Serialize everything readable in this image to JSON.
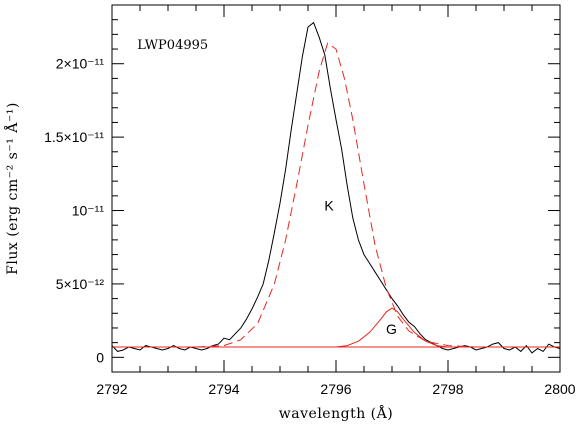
{
  "chart_data": {
    "type": "line",
    "title": "",
    "xlabel": "wavelength (Å)",
    "ylabel": "Flux (erg cm⁻² s⁻¹ Å⁻¹)",
    "xlim": [
      2792,
      2800
    ],
    "ylim": [
      -1e-12,
      2.4e-11
    ],
    "x_ticks": [
      {
        "value": 2792,
        "label": "2792"
      },
      {
        "value": 2794,
        "label": "2794"
      },
      {
        "value": 2796,
        "label": "2796"
      },
      {
        "value": 2798,
        "label": "2798"
      },
      {
        "value": 2800,
        "label": "2800"
      }
    ],
    "y_ticks": [
      {
        "value": 0,
        "label": "0"
      },
      {
        "value": 5e-12,
        "label": "5×10⁻¹²"
      },
      {
        "value": 1e-11,
        "label": "10⁻¹¹"
      },
      {
        "value": 1.5e-11,
        "label": "1.5×10⁻¹¹"
      },
      {
        "value": 2e-11,
        "label": "2×10⁻¹¹"
      }
    ],
    "annotations": [
      {
        "text": "LWP04995",
        "x": 2792.45,
        "y": 2.1e-11
      },
      {
        "text": "K",
        "x": 2795.9,
        "y": 1e-11
      },
      {
        "text": "G",
        "x": 2797.0,
        "y": 1.6e-12
      }
    ],
    "series": [
      {
        "style": "solid",
        "color": "#000000",
        "x": [
          2792.0,
          2792.1,
          2792.2,
          2792.3,
          2792.4,
          2792.5,
          2792.6,
          2792.7,
          2792.8,
          2792.9,
          2793.0,
          2793.1,
          2793.2,
          2793.3,
          2793.4,
          2793.5,
          2793.6,
          2793.7,
          2793.8,
          2793.9,
          2794.0,
          2794.1,
          2794.2,
          2794.3,
          2794.4,
          2794.5,
          2794.6,
          2794.7,
          2794.8,
          2794.9,
          2795.0,
          2795.1,
          2795.2,
          2795.3,
          2795.4,
          2795.5,
          2795.6,
          2795.7,
          2795.8,
          2795.9,
          2796.0,
          2796.1,
          2796.2,
          2796.3,
          2796.4,
          2796.5,
          2796.6,
          2796.7,
          2796.8,
          2796.9,
          2797.0,
          2797.1,
          2797.2,
          2797.3,
          2797.4,
          2797.5,
          2797.6,
          2797.7,
          2797.8,
          2797.9,
          2798.0,
          2798.1,
          2798.2,
          2798.3,
          2798.4,
          2798.5,
          2798.6,
          2798.7,
          2798.8,
          2798.9,
          2799.0,
          2799.1,
          2799.2,
          2799.3,
          2799.4,
          2799.5,
          2799.6,
          2799.7,
          2799.8,
          2799.9,
          2800.0
        ],
        "values": [
          8e-13,
          4e-13,
          5e-13,
          7e-13,
          6e-13,
          5e-13,
          8e-13,
          7e-13,
          6e-13,
          5e-13,
          6e-13,
          8e-13,
          6e-13,
          5e-13,
          7e-13,
          6e-13,
          5e-13,
          6e-13,
          8e-13,
          9e-13,
          1.3e-12,
          1.2e-12,
          1.6e-12,
          2e-12,
          2.6e-12,
          3.3e-12,
          4.1e-12,
          5e-12,
          6.6e-12,
          8.5e-12,
          1.05e-11,
          1.28e-11,
          1.55e-11,
          1.8e-11,
          2.05e-11,
          2.25e-11,
          2.28e-11,
          2.18e-11,
          2.06e-11,
          1.83e-11,
          1.62e-11,
          1.42e-11,
          1.17e-11,
          9.5e-12,
          8e-12,
          7e-12,
          6.4e-12,
          5.8e-12,
          5.2e-12,
          4.6e-12,
          4e-12,
          3.5e-12,
          2.9e-12,
          2.4e-12,
          2.1e-12,
          1.6e-12,
          1.2e-12,
          1e-12,
          8e-13,
          6e-13,
          5e-13,
          6e-13,
          7e-13,
          8e-13,
          7e-13,
          5e-13,
          6e-13,
          7e-13,
          9e-13,
          1e-12,
          6e-13,
          5e-13,
          7e-13,
          4e-13,
          8e-13,
          3e-13,
          6e-13,
          4e-13,
          9e-13,
          7e-13,
          6e-13
        ]
      },
      {
        "style": "dashed",
        "color": "#e8271f",
        "x": [
          2792.0,
          2792.5,
          2793.0,
          2793.5,
          2794.0,
          2794.3,
          2794.6,
          2794.9,
          2795.1,
          2795.3,
          2795.5,
          2795.7,
          2795.85,
          2796.0,
          2796.15,
          2796.3,
          2796.5,
          2796.7,
          2796.9,
          2797.1,
          2797.3,
          2797.6,
          2798.0,
          2798.5,
          2799.0,
          2799.5,
          2800.0
        ],
        "values": [
          7e-13,
          7e-13,
          7e-13,
          7e-13,
          8e-13,
          1.2e-12,
          2.3e-12,
          5e-12,
          8e-12,
          1.18e-11,
          1.58e-11,
          1.95e-11,
          2.14e-11,
          2.1e-11,
          1.9e-11,
          1.62e-11,
          1.18e-11,
          7.6e-12,
          4.7e-12,
          2.8e-12,
          1.8e-12,
          1.1e-12,
          8e-13,
          7e-13,
          7e-13,
          7e-13,
          7e-13
        ]
      },
      {
        "style": "solid",
        "color": "#e8271f",
        "x": [
          2792.0,
          2796.0,
          2796.2,
          2796.4,
          2796.6,
          2796.8,
          2796.9,
          2797.0,
          2797.1,
          2797.2,
          2797.4,
          2797.6,
          2797.8,
          2798.0,
          2800.0
        ],
        "values": [
          7e-13,
          7e-13,
          8e-13,
          1.1e-12,
          1.7e-12,
          2.6e-12,
          3.1e-12,
          3.35e-12,
          3.1e-12,
          2.6e-12,
          1.7e-12,
          1.1e-12,
          8e-13,
          7e-13,
          7e-13
        ]
      },
      {
        "style": "solid",
        "color": "#e8271f",
        "x": [
          2792.0,
          2800.0
        ],
        "values": [
          7e-13,
          7e-13
        ]
      }
    ]
  }
}
